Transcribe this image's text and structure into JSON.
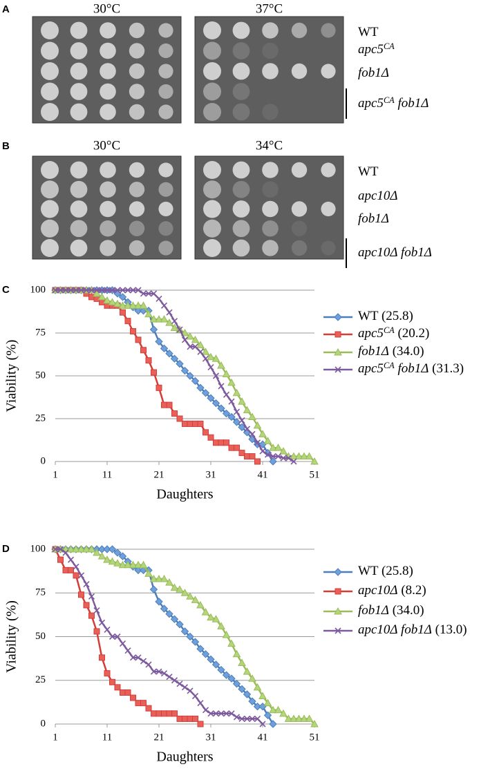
{
  "spot_assays": [
    {
      "letter": "A",
      "conditions": [
        "30°C",
        "37°C"
      ],
      "strains": [
        [
          {
            "text": "WT"
          }
        ],
        [
          {
            "text": "apc5",
            "italic": true
          },
          {
            "text": "CA",
            "italic": true,
            "sup": true
          }
        ],
        [
          {
            "text": "fob1Δ",
            "italic": true
          }
        ],
        [
          {
            "text": "apc5",
            "italic": true
          },
          {
            "text": "CA",
            "italic": true,
            "sup": true
          },
          {
            "text": " fob1Δ",
            "italic": true
          }
        ]
      ]
    },
    {
      "letter": "B",
      "conditions": [
        "30°C",
        "34°C"
      ],
      "strains": [
        [
          {
            "text": "WT"
          }
        ],
        [
          {
            "text": "apc10Δ",
            "italic": true
          }
        ],
        [
          {
            "text": "fob1Δ",
            "italic": true
          }
        ],
        [
          {
            "text": "apc10Δ fob1Δ",
            "italic": true
          }
        ]
      ]
    }
  ],
  "chart_data": [
    {
      "type": "line",
      "letter": "C",
      "x_label": "Daughters",
      "y_label": "Viability (%)",
      "x": [
        1,
        2,
        3,
        4,
        5,
        6,
        7,
        8,
        9,
        10,
        11,
        12,
        13,
        14,
        15,
        16,
        17,
        18,
        19,
        20,
        21,
        22,
        23,
        24,
        25,
        26,
        27,
        28,
        29,
        30,
        31,
        32,
        33,
        34,
        35,
        36,
        37,
        38,
        39,
        40,
        41,
        42,
        43,
        44,
        45,
        46,
        47,
        48,
        49,
        50,
        51
      ],
      "xlim": [
        1,
        51
      ],
      "xticks": [
        1,
        11,
        21,
        31,
        41,
        51
      ],
      "ylim": [
        0,
        100
      ],
      "yticks": [
        0,
        25,
        50,
        75,
        100
      ],
      "grid": true,
      "series": [
        {
          "name": [
            {
              "text": "WT (25.8)"
            }
          ],
          "color": "#4a7ebb",
          "marker": "diamond",
          "values": [
            100,
            100,
            100,
            100,
            100,
            100,
            100,
            100,
            100,
            100,
            100,
            100,
            98,
            96,
            93,
            90,
            88,
            88,
            88,
            77,
            70,
            66,
            63,
            60,
            57,
            53,
            50,
            47,
            43,
            40,
            37,
            34,
            31,
            28,
            26,
            23,
            20,
            17,
            13,
            10,
            10,
            5,
            0,
            null,
            null,
            null,
            null,
            null,
            null,
            null,
            null
          ]
        },
        {
          "name": [
            {
              "text": "apc5",
              "italic": true
            },
            {
              "text": "CA",
              "italic": true,
              "sup": true
            },
            {
              "text": " (20.2)"
            }
          ],
          "color": "#d63c36",
          "marker": "square",
          "values": [
            100,
            100,
            100,
            100,
            100,
            100,
            98,
            96,
            95,
            93,
            91,
            91,
            91,
            87,
            82,
            76,
            71,
            65,
            59,
            52,
            43,
            33,
            33,
            28,
            25,
            22,
            22,
            22,
            22,
            17,
            14,
            11,
            11,
            11,
            8,
            8,
            5,
            3,
            3,
            0,
            null,
            null,
            null,
            null,
            null,
            null,
            null,
            null,
            null,
            null,
            null
          ]
        },
        {
          "name": [
            {
              "text": "fob1Δ",
              "italic": true
            },
            {
              "text": " (34.0)"
            }
          ],
          "color": "#9bbb59",
          "marker": "triangle",
          "values": [
            100,
            100,
            100,
            100,
            100,
            100,
            100,
            100,
            98,
            96,
            94,
            93,
            92,
            91,
            91,
            91,
            91,
            91,
            86,
            83,
            83,
            83,
            81,
            78,
            77,
            75,
            73,
            71,
            68,
            64,
            61,
            60,
            56,
            51,
            46,
            40,
            35,
            30,
            26,
            21,
            16,
            12,
            8,
            8,
            6,
            3,
            3,
            3,
            3,
            3,
            0
          ]
        },
        {
          "name": [
            {
              "text": "apc5",
              "italic": true
            },
            {
              "text": "CA",
              "italic": true,
              "sup": true
            },
            {
              "text": " fob1Δ",
              "italic": true
            },
            {
              "text": " (31.3)"
            }
          ],
          "color": "#7d5a9e",
          "marker": "x",
          "values": [
            100,
            100,
            100,
            100,
            100,
            100,
            100,
            100,
            100,
            100,
            100,
            100,
            100,
            100,
            100,
            100,
            100,
            98,
            98,
            98,
            95,
            91,
            87,
            82,
            77,
            71,
            67,
            67,
            64,
            60,
            55,
            50,
            44,
            39,
            35,
            29,
            24,
            19,
            16,
            11,
            6,
            4,
            3,
            3,
            2,
            2,
            0,
            null,
            null,
            null,
            null
          ]
        }
      ]
    },
    {
      "type": "line",
      "letter": "D",
      "x_label": "Daughters",
      "y_label": "Viability (%)",
      "x": [
        1,
        2,
        3,
        4,
        5,
        6,
        7,
        8,
        9,
        10,
        11,
        12,
        13,
        14,
        15,
        16,
        17,
        18,
        19,
        20,
        21,
        22,
        23,
        24,
        25,
        26,
        27,
        28,
        29,
        30,
        31,
        32,
        33,
        34,
        35,
        36,
        37,
        38,
        39,
        40,
        41,
        42,
        43,
        44,
        45,
        46,
        47,
        48,
        49,
        50,
        51
      ],
      "xlim": [
        1,
        51
      ],
      "xticks": [
        1,
        11,
        21,
        31,
        41,
        51
      ],
      "ylim": [
        0,
        100
      ],
      "yticks": [
        0,
        25,
        50,
        75,
        100
      ],
      "grid": true,
      "series": [
        {
          "name": [
            {
              "text": "WT (25.8)"
            }
          ],
          "color": "#4a7ebb",
          "marker": "diamond",
          "values": [
            100,
            100,
            100,
            100,
            100,
            100,
            100,
            100,
            100,
            100,
            100,
            100,
            98,
            96,
            93,
            90,
            88,
            88,
            88,
            77,
            70,
            66,
            63,
            60,
            57,
            53,
            50,
            47,
            43,
            40,
            37,
            34,
            31,
            28,
            26,
            23,
            20,
            17,
            13,
            10,
            10,
            5,
            0,
            null,
            null,
            null,
            null,
            null,
            null,
            null,
            null
          ]
        },
        {
          "name": [
            {
              "text": "apc10Δ",
              "italic": true
            },
            {
              "text": " (8.2)"
            }
          ],
          "color": "#d63c36",
          "marker": "square",
          "values": [
            100,
            94,
            88,
            88,
            85,
            74,
            68,
            62,
            53,
            38,
            29,
            24,
            21,
            18,
            18,
            15,
            12,
            12,
            9,
            6,
            6,
            6,
            6,
            6,
            3,
            3,
            3,
            3,
            0,
            null,
            null,
            null,
            null,
            null,
            null,
            null,
            null,
            null,
            null,
            null,
            null,
            null,
            null,
            null,
            null,
            null,
            null,
            null,
            null,
            null,
            null
          ]
        },
        {
          "name": [
            {
              "text": "fob1Δ",
              "italic": true
            },
            {
              "text": " (34.0)"
            }
          ],
          "color": "#9bbb59",
          "marker": "triangle",
          "values": [
            100,
            100,
            100,
            100,
            100,
            100,
            100,
            100,
            98,
            96,
            94,
            93,
            92,
            91,
            91,
            91,
            91,
            91,
            86,
            83,
            83,
            83,
            81,
            78,
            77,
            75,
            73,
            71,
            68,
            64,
            61,
            60,
            56,
            51,
            46,
            40,
            35,
            30,
            26,
            21,
            16,
            12,
            8,
            8,
            6,
            3,
            3,
            3,
            3,
            3,
            0
          ]
        },
        {
          "name": [
            {
              "text": "apc10Δ fob1Δ",
              "italic": true
            },
            {
              "text": " (13.0)"
            }
          ],
          "color": "#7d5a9e",
          "marker": "x",
          "values": [
            100,
            100,
            98,
            94,
            90,
            85,
            80,
            73,
            65,
            58,
            54,
            50,
            50,
            46,
            42,
            38,
            38,
            36,
            34,
            30,
            30,
            29,
            27,
            25,
            23,
            21,
            19,
            16,
            12,
            8,
            6,
            6,
            6,
            6,
            6,
            4,
            3,
            3,
            3,
            3,
            0,
            null,
            null,
            null,
            null,
            null,
            null,
            null,
            null,
            null,
            null
          ]
        }
      ]
    }
  ]
}
